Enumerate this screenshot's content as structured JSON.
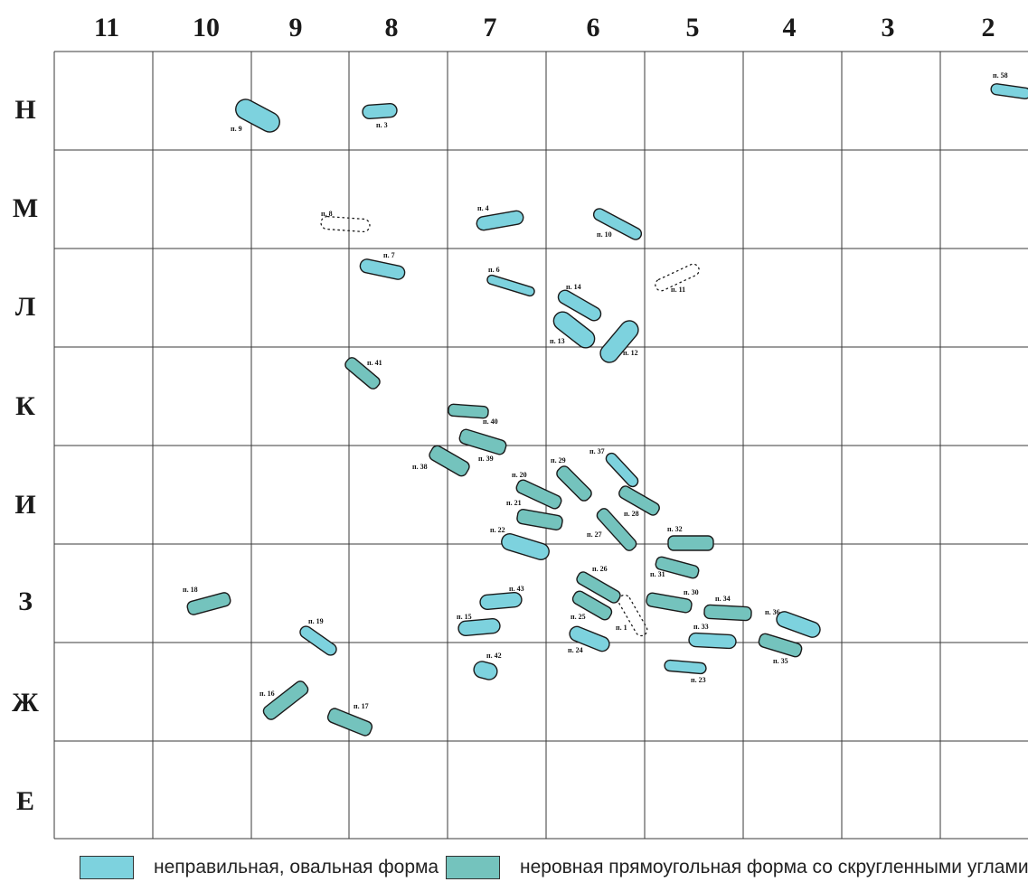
{
  "columns": [
    "11",
    "10",
    "9",
    "8",
    "7",
    "6",
    "5",
    "4",
    "3",
    "2"
  ],
  "rows": [
    "Н",
    "М",
    "Л",
    "К",
    "И",
    "З",
    "Ж",
    "Е"
  ],
  "colors": {
    "oval": "#7dd2de",
    "rect": "#74c3bd",
    "grid": "#3a3a3a",
    "outline": "#1a1a1a"
  },
  "legend": [
    {
      "key": "oval",
      "label": "неправильная, овальная форма"
    },
    {
      "key": "rect",
      "label": "неровная прямоугольная форма со скругленными углами"
    }
  ],
  "pits": [
    {
      "id": "58",
      "label": "п. 58",
      "type": "oval"
    },
    {
      "id": "9",
      "label": "п. 9",
      "type": "oval"
    },
    {
      "id": "3",
      "label": "п. 3",
      "type": "oval"
    },
    {
      "id": "8",
      "label": "п. 8",
      "type": "dotted"
    },
    {
      "id": "4",
      "label": "п. 4",
      "type": "oval"
    },
    {
      "id": "10",
      "label": "п. 10",
      "type": "oval"
    },
    {
      "id": "7",
      "label": "п. 7",
      "type": "oval"
    },
    {
      "id": "6",
      "label": "п. 6",
      "type": "oval"
    },
    {
      "id": "11",
      "label": "п. 11",
      "type": "dotted"
    },
    {
      "id": "14",
      "label": "п. 14",
      "type": "oval"
    },
    {
      "id": "13",
      "label": "п. 13",
      "type": "oval"
    },
    {
      "id": "12",
      "label": "п. 12",
      "type": "oval"
    },
    {
      "id": "41",
      "label": "п. 41",
      "type": "rect"
    },
    {
      "id": "40",
      "label": "п. 40",
      "type": "rect"
    },
    {
      "id": "39",
      "label": "п. 39",
      "type": "rect"
    },
    {
      "id": "38",
      "label": "п. 38",
      "type": "rect"
    },
    {
      "id": "37",
      "label": "п. 37",
      "type": "oval"
    },
    {
      "id": "29",
      "label": "п. 29",
      "type": "rect"
    },
    {
      "id": "20",
      "label": "п. 20",
      "type": "rect"
    },
    {
      "id": "21",
      "label": "п. 21",
      "type": "rect"
    },
    {
      "id": "28",
      "label": "п. 28",
      "type": "rect"
    },
    {
      "id": "27",
      "label": "п. 27",
      "type": "rect"
    },
    {
      "id": "22",
      "label": "п. 22",
      "type": "oval"
    },
    {
      "id": "32",
      "label": "п. 32",
      "type": "rect"
    },
    {
      "id": "31",
      "label": "п. 31",
      "type": "rect"
    },
    {
      "id": "26",
      "label": "п. 26",
      "type": "rect"
    },
    {
      "id": "25",
      "label": "п. 25",
      "type": "rect"
    },
    {
      "id": "1",
      "label": "п. 1",
      "type": "dotted"
    },
    {
      "id": "30",
      "label": "п. 30",
      "type": "rect"
    },
    {
      "id": "34",
      "label": "п. 34",
      "type": "rect"
    },
    {
      "id": "36",
      "label": "п. 36",
      "type": "oval"
    },
    {
      "id": "35",
      "label": "п. 35",
      "type": "rect"
    },
    {
      "id": "33",
      "label": "п. 33",
      "type": "oval"
    },
    {
      "id": "24",
      "label": "п. 24",
      "type": "oval"
    },
    {
      "id": "23",
      "label": "п. 23",
      "type": "oval"
    },
    {
      "id": "43",
      "label": "п. 43",
      "type": "oval"
    },
    {
      "id": "15",
      "label": "п. 15",
      "type": "oval"
    },
    {
      "id": "42",
      "label": "п. 42",
      "type": "oval"
    },
    {
      "id": "18",
      "label": "п. 18",
      "type": "rect"
    },
    {
      "id": "19",
      "label": "п. 19",
      "type": "oval"
    },
    {
      "id": "16",
      "label": "п. 16",
      "type": "rect"
    },
    {
      "id": "17",
      "label": "п. 17",
      "type": "rect"
    }
  ]
}
